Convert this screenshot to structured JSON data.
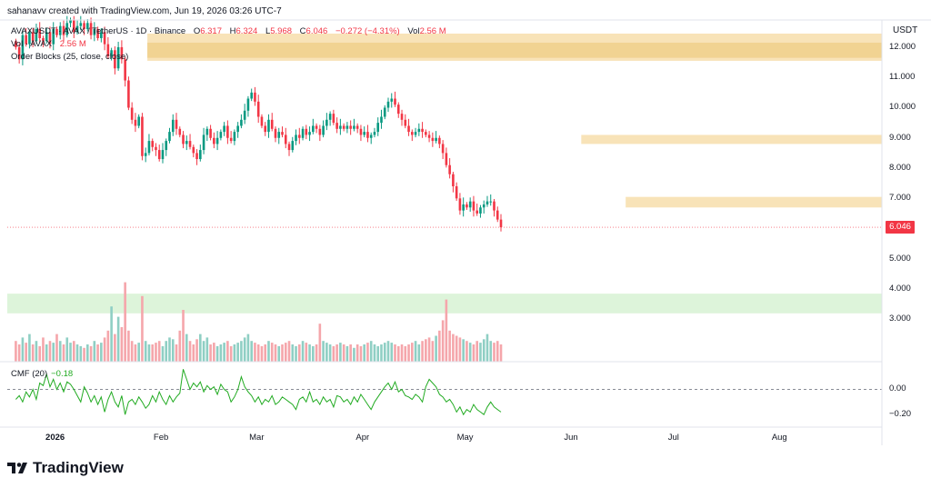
{
  "caption": "sahanavv created with TradingView.com, Jun 19, 2026 03:26 UTC-7",
  "legend": {
    "symbol": "AVAXUSDT · AVAX / TetherUS · 1D · Binance",
    "o_label": "O",
    "o": "6.317",
    "h_label": "H",
    "h": "6.324",
    "l_label": "L",
    "l": "5.968",
    "c_label": "C",
    "c": "6.046",
    "change": "−0.272 (−4.31%)",
    "vol_label": "Vol",
    "vol": "2.56 M",
    "vol_line_label": "Vol · AVAX",
    "vol_line_value": "2.56 M",
    "ob_label": "Order Blocks (25, close, close)"
  },
  "cmf_legend": {
    "label": "CMF (20)",
    "value": "−0.18"
  },
  "currency": "USDT",
  "last_price": "6.046",
  "brand": "TradingView",
  "colors": {
    "up": "#089981",
    "down": "#f23645",
    "vol_up": "#8fcfc4",
    "vol_down": "#f5a6ab",
    "ob_bear": "#f7e0b0",
    "ob_bear_dark": "#efd08e",
    "ob_bull": "#d9f3d6",
    "cmf": "#22ab22"
  },
  "chart_data": {
    "type": "candlestick",
    "title": "AVAXUSDT · AVAX / TetherUS · 1D · Binance",
    "ylabel": "USDT",
    "ylim": [
      1.6,
      12.9
    ],
    "y_ticks": [
      "12.000",
      "11.000",
      "10.000",
      "9.000",
      "8.000",
      "7.000",
      "6.000",
      "5.000",
      "4.000",
      "3.000"
    ],
    "x_ticks": [
      "2026",
      "Feb",
      "Mar",
      "Apr",
      "May",
      "Jun",
      "Jul",
      "Aug"
    ],
    "x_tick_days": [
      0,
      31,
      59,
      90,
      120,
      151,
      181,
      212
    ],
    "x_range_days": [
      -14,
      242
    ],
    "last_close": 6.046,
    "order_blocks": [
      {
        "type": "bearish",
        "top": 12.45,
        "bottom": 11.55,
        "from_day": 27
      },
      {
        "type": "bearish",
        "top": 12.15,
        "bottom": 11.65,
        "from_day": 27
      },
      {
        "type": "bearish",
        "top": 9.1,
        "bottom": 8.8,
        "from_day": 154
      },
      {
        "type": "bearish",
        "top": 7.05,
        "bottom": 6.7,
        "from_day": 167
      },
      {
        "type": "bullish",
        "top": 3.85,
        "bottom": 3.2,
        "from_day": -14
      }
    ],
    "closes": [
      12.0,
      11.6,
      12.4,
      12.1,
      12.5,
      12.2,
      12.6,
      12.3,
      12.2,
      12.5,
      12.1,
      12.6,
      12.4,
      12.7,
      12.4,
      12.8,
      12.9,
      12.5,
      12.7,
      12.8,
      12.6,
      12.8,
      12.4,
      12.6,
      12.3,
      12.5,
      12.1,
      11.7,
      11.9,
      11.3,
      12.0,
      11.6,
      10.9,
      10.0,
      9.6,
      9.4,
      9.7,
      8.4,
      8.5,
      8.9,
      8.7,
      8.6,
      8.3,
      8.6,
      8.9,
      9.2,
      9.6,
      9.3,
      9.1,
      8.8,
      8.9,
      8.7,
      8.5,
      8.3,
      8.6,
      9.1,
      9.3,
      9.0,
      8.8,
      9.0,
      9.2,
      9.4,
      9.0,
      8.9,
      9.2,
      9.4,
      9.6,
      9.9,
      10.3,
      10.5,
      10.2,
      9.7,
      9.4,
      9.2,
      9.6,
      9.3,
      9.0,
      9.2,
      9.1,
      8.8,
      8.6,
      8.9,
      9.1,
      9.0,
      9.3,
      9.1,
      9.2,
      9.4,
      9.3,
      9.1,
      9.4,
      9.6,
      9.8,
      9.5,
      9.3,
      9.4,
      9.3,
      9.4,
      9.3,
      9.4,
      9.3,
      9.1,
      9.2,
      9.0,
      9.1,
      9.2,
      9.5,
      9.7,
      10.0,
      10.2,
      10.3,
      10.1,
      9.8,
      9.6,
      9.4,
      9.2,
      9.1,
      9.2,
      9.3,
      9.2,
      9.1,
      9.0,
      8.9,
      9.0,
      8.8,
      8.5,
      8.1,
      7.8,
      7.4,
      7.0,
      6.6,
      6.8,
      6.7,
      6.9,
      6.6,
      6.5,
      6.7,
      6.8,
      6.9,
      6.9,
      6.6,
      6.3,
      6.046
    ],
    "volume_scale": [
      0.6,
      0.5,
      0.7,
      0.55,
      0.8,
      0.5,
      0.6,
      0.45,
      0.7,
      0.5,
      0.6,
      0.55,
      0.8,
      0.6,
      0.5,
      0.7,
      0.55,
      0.6,
      0.5,
      0.45,
      0.4,
      0.5,
      0.45,
      0.6,
      0.5,
      0.55,
      0.7,
      0.9,
      1.6,
      0.8,
      1.3,
      1.0,
      2.3,
      0.9,
      0.6,
      0.5,
      0.55,
      1.9,
      0.6,
      0.5,
      0.5,
      0.55,
      0.6,
      0.45,
      0.6,
      0.7,
      0.65,
      0.5,
      0.9,
      1.5,
      0.8,
      0.6,
      0.5,
      0.65,
      0.8,
      0.6,
      0.7,
      0.5,
      0.55,
      0.45,
      0.5,
      0.55,
      0.6,
      0.45,
      0.5,
      0.55,
      0.6,
      0.7,
      0.8,
      0.6,
      0.55,
      0.5,
      0.45,
      0.5,
      0.6,
      0.55,
      0.5,
      0.45,
      0.5,
      0.55,
      0.6,
      0.5,
      0.45,
      0.5,
      0.6,
      0.55,
      0.5,
      0.45,
      0.5,
      1.1,
      0.6,
      0.55,
      0.5,
      0.45,
      0.5,
      0.55,
      0.5,
      0.45,
      0.5,
      0.4,
      0.5,
      0.45,
      0.5,
      0.55,
      0.6,
      0.5,
      0.45,
      0.5,
      0.55,
      0.6,
      0.55,
      0.5,
      0.45,
      0.5,
      0.45,
      0.5,
      0.55,
      0.6,
      0.5,
      0.6,
      0.65,
      0.7,
      0.6,
      0.75,
      0.9,
      1.2,
      1.8,
      0.9,
      0.8,
      0.75,
      0.7,
      0.65,
      0.6,
      0.55,
      0.5,
      0.6,
      0.55,
      0.65,
      0.8,
      0.6,
      0.55,
      0.6,
      0.5
    ],
    "cmf_ticks": [
      "0.00",
      "−0.20"
    ],
    "cmf_ylim": [
      -0.3,
      0.22
    ],
    "cmf": [
      -0.08,
      -0.05,
      -0.1,
      -0.02,
      -0.06,
      0.0,
      -0.08,
      0.05,
      0.03,
      0.12,
      0.02,
      0.08,
      0.0,
      0.05,
      -0.02,
      0.06,
      0.04,
      0.0,
      -0.05,
      -0.1,
      0.02,
      -0.03,
      -0.1,
      -0.05,
      -0.12,
      -0.06,
      -0.18,
      -0.08,
      -0.02,
      -0.1,
      -0.14,
      -0.05,
      -0.2,
      -0.1,
      -0.08,
      -0.12,
      -0.06,
      -0.1,
      -0.15,
      -0.12,
      -0.05,
      -0.1,
      -0.02,
      -0.08,
      -0.12,
      -0.05,
      -0.1,
      -0.06,
      -0.03,
      0.16,
      0.08,
      0.0,
      0.05,
      0.02,
      0.06,
      -0.02,
      0.03,
      0.0,
      0.02,
      -0.04,
      0.04,
      0.0,
      -0.02,
      -0.1,
      -0.06,
      0.0,
      0.1,
      0.02,
      -0.02,
      -0.05,
      -0.1,
      -0.06,
      -0.12,
      -0.08,
      -0.1,
      -0.05,
      -0.12,
      -0.1,
      -0.06,
      -0.08,
      -0.1,
      -0.12,
      -0.16,
      -0.08,
      -0.06,
      -0.1,
      -0.02,
      -0.1,
      -0.08,
      -0.12,
      -0.06,
      -0.1,
      -0.08,
      -0.14,
      -0.05,
      -0.06,
      -0.1,
      -0.08,
      -0.12,
      -0.06,
      -0.1,
      -0.04,
      -0.08,
      -0.12,
      -0.16,
      -0.1,
      -0.06,
      -0.02,
      0.02,
      0.05,
      0.0,
      0.06,
      -0.02,
      0.0,
      -0.05,
      -0.06,
      -0.08,
      -0.04,
      -0.06,
      -0.1,
      0.02,
      0.08,
      0.05,
      0.02,
      -0.04,
      -0.06,
      -0.1,
      -0.08,
      -0.12,
      -0.18,
      -0.14,
      -0.2,
      -0.16,
      -0.18,
      -0.12,
      -0.16,
      -0.18,
      -0.2,
      -0.14,
      -0.1,
      -0.14,
      -0.16,
      -0.18
    ]
  }
}
